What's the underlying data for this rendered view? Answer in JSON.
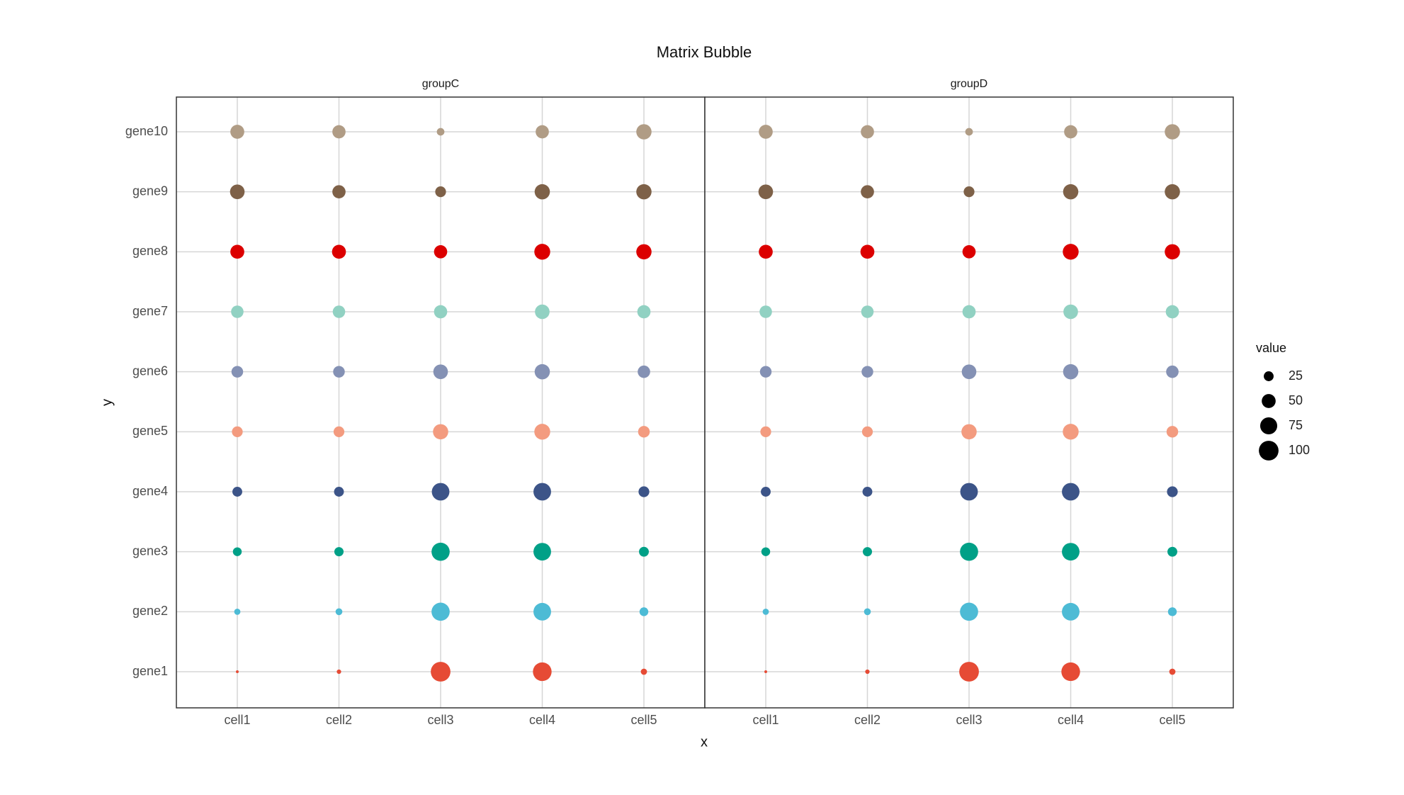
{
  "chart_data": {
    "type": "bubble",
    "title": "Matrix Bubble",
    "x_label": "x",
    "y_label": "y",
    "x_categories": [
      "cell1",
      "cell2",
      "cell3",
      "cell4",
      "cell5"
    ],
    "y_categories": [
      "gene1",
      "gene2",
      "gene3",
      "gene4",
      "gene5",
      "gene6",
      "gene7",
      "gene8",
      "gene9",
      "gene10"
    ],
    "colors": [
      "#E64B35",
      "#4DBBD5",
      "#00A087",
      "#3C5488",
      "#F39B7F",
      "#8491B4",
      "#91D1C2",
      "#DC0000",
      "#7E6148",
      "#B09C85"
    ],
    "panels": [
      {
        "title": "groupC",
        "values": [
          [
            2,
            5,
            100,
            90,
            10
          ],
          [
            10,
            12,
            85,
            80,
            20
          ],
          [
            20,
            22,
            85,
            80,
            25
          ],
          [
            25,
            25,
            80,
            80,
            30
          ],
          [
            30,
            30,
            60,
            65,
            35
          ],
          [
            35,
            35,
            55,
            60,
            40
          ],
          [
            40,
            40,
            45,
            55,
            45
          ],
          [
            50,
            50,
            45,
            65,
            60
          ],
          [
            55,
            45,
            30,
            60,
            60
          ],
          [
            50,
            45,
            15,
            45,
            60
          ]
        ]
      },
      {
        "title": "groupD",
        "values": [
          [
            2,
            5,
            100,
            90,
            10
          ],
          [
            10,
            12,
            85,
            80,
            20
          ],
          [
            20,
            22,
            85,
            80,
            25
          ],
          [
            25,
            25,
            80,
            80,
            30
          ],
          [
            30,
            30,
            60,
            65,
            35
          ],
          [
            35,
            35,
            55,
            60,
            40
          ],
          [
            40,
            40,
            45,
            55,
            45
          ],
          [
            50,
            50,
            45,
            65,
            60
          ],
          [
            55,
            45,
            30,
            60,
            60
          ],
          [
            50,
            45,
            15,
            45,
            60
          ]
        ]
      }
    ],
    "legend_title": "value",
    "size_ticks": [
      25,
      50,
      75,
      100
    ]
  }
}
